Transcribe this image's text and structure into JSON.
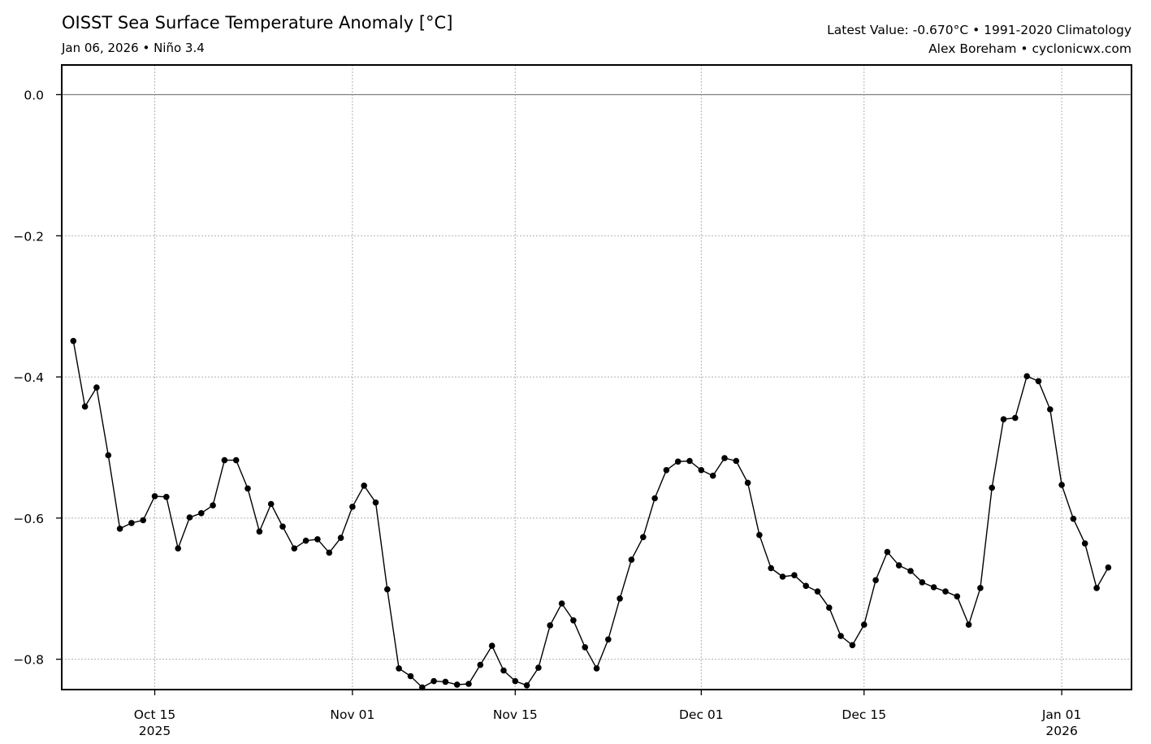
{
  "header": {
    "title": "OISST Sea Surface Temperature Anomaly [°C]",
    "subtitle": "Jan 06, 2026 • Niño 3.4",
    "latest": "Latest Value: -0.670°C • 1991-2020 Climatology",
    "credit": "Alex Boreham • cyclonicwx.com"
  },
  "chart_data": {
    "type": "line",
    "title": "OISST Sea Surface Temperature Anomaly [°C]",
    "xlabel": "",
    "ylabel": "",
    "x_start_date": "2025-10-08",
    "x_end_date": "2026-01-06",
    "x_range": [
      "2025-10-07",
      "2026-01-07"
    ],
    "ylim": [
      -0.843,
      0.042
    ],
    "yticks": [
      {
        "value": 0.0,
        "label": "0.0"
      },
      {
        "value": -0.2,
        "label": "−0.2"
      },
      {
        "value": -0.4,
        "label": "−0.4"
      },
      {
        "value": -0.6,
        "label": "−0.6"
      },
      {
        "value": -0.8,
        "label": "−0.8"
      }
    ],
    "xticks": [
      {
        "date": "2025-10-15",
        "label": "Oct 15",
        "sublabel": "2025"
      },
      {
        "date": "2025-11-01",
        "label": "Nov 01",
        "sublabel": ""
      },
      {
        "date": "2025-11-15",
        "label": "Nov 15",
        "sublabel": ""
      },
      {
        "date": "2025-12-01",
        "label": "Dec 01",
        "sublabel": ""
      },
      {
        "date": "2025-12-15",
        "label": "Dec 15",
        "sublabel": ""
      },
      {
        "date": "2026-01-01",
        "label": "Jan 01",
        "sublabel": "2026"
      }
    ],
    "grid": true,
    "zero_line": true,
    "colors": {
      "line": "#000000",
      "marker": "#000000",
      "grid": "#b0b0b0",
      "zero_line": "#808080"
    },
    "series": [
      {
        "values": [
          -0.349,
          -0.442,
          -0.415,
          -0.511,
          -0.615,
          -0.607,
          -0.603,
          -0.569,
          -0.57,
          -0.643,
          -0.599,
          -0.593,
          -0.582,
          -0.518,
          -0.518,
          -0.558,
          -0.619,
          -0.58,
          -0.612,
          -0.643,
          -0.632,
          -0.63,
          -0.649,
          -0.628,
          -0.584,
          -0.554,
          -0.578,
          -0.701,
          -0.813,
          -0.824,
          -0.84,
          -0.831,
          -0.832,
          -0.836,
          -0.835,
          -0.808,
          -0.781,
          -0.816,
          -0.831,
          -0.837,
          -0.812,
          -0.752,
          -0.721,
          -0.745,
          -0.783,
          -0.813,
          -0.772,
          -0.714,
          -0.659,
          -0.627,
          -0.572,
          -0.532,
          -0.52,
          -0.519,
          -0.532,
          -0.54,
          -0.515,
          -0.519,
          -0.55,
          -0.624,
          -0.671,
          -0.683,
          -0.681,
          -0.696,
          -0.704,
          -0.727,
          -0.767,
          -0.78,
          -0.751,
          -0.688,
          -0.648,
          -0.667,
          -0.675,
          -0.691,
          -0.698,
          -0.704,
          -0.711,
          -0.751,
          -0.699,
          -0.557,
          -0.46,
          -0.458,
          -0.399,
          -0.406,
          -0.446,
          -0.553,
          -0.601,
          -0.636,
          -0.699,
          -0.67
        ]
      }
    ]
  }
}
